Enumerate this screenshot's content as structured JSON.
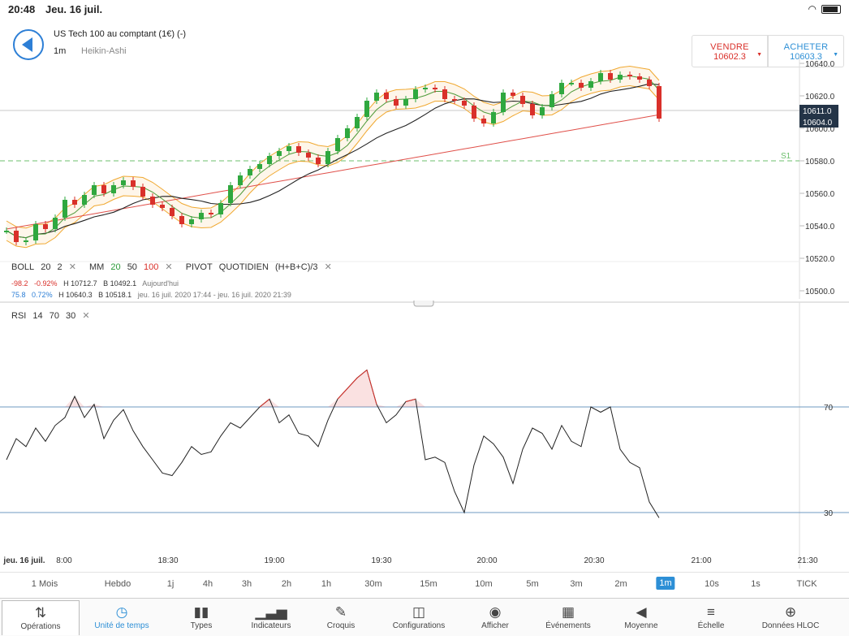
{
  "status": {
    "time": "20:48",
    "date": "Jeu. 16 juil."
  },
  "instrument": {
    "name": "US Tech 100 au comptant (1€) (-)",
    "timeframe": "1m",
    "chart_type": "Heikin-Ashi"
  },
  "trade": {
    "sell_label": "VENDRE",
    "sell_price": "10602.3",
    "buy_label": "ACHETER",
    "buy_price": "10603.3"
  },
  "price_axis": {
    "labels": [
      "10640.0",
      "10620.0",
      "10600.0",
      "10580.0",
      "10560.0",
      "10540.0",
      "10520.0",
      "10500.0"
    ],
    "tag_sell": "10611.0",
    "tag_buy": "10604.0",
    "pivot_label": "S1"
  },
  "indicators": {
    "boll_name": "BOLL",
    "boll_p1": "20",
    "boll_p2": "2",
    "mm_name": "MM",
    "mm_p1": "20",
    "mm_p2": "50",
    "mm_p3": "100",
    "pivot_name": "PIVOT",
    "pivot_mode": "QUOTIDIEN",
    "pivot_formula": "(H+B+C)/3",
    "row1_change": "-98.2",
    "row1_pct": "-0.92%",
    "row1_high": "H 10712.7",
    "row1_low": "B 10492.1",
    "row1_period": "Aujourd'hui",
    "row2_change": "75.8",
    "row2_pct": "0.72%",
    "row2_high": "H 10640.3",
    "row2_low": "B 10518.1",
    "row2_period": "jeu. 16 juil. 2020 17:44 - jeu. 16 juil. 2020 21:39"
  },
  "rsi": {
    "name": "RSI",
    "p1": "14",
    "p2": "70",
    "p3": "30",
    "upper": "70",
    "lower": "30"
  },
  "time_axis": [
    "jeu. 16 juil.",
    "8:00",
    "18:30",
    "19:00",
    "19:30",
    "20:00",
    "20:30",
    "21:00",
    "21:30"
  ],
  "timeframes": [
    {
      "label": "1 Mois"
    },
    {
      "label": "Hebdo"
    },
    {
      "label": "1j"
    },
    {
      "label": "4h"
    },
    {
      "label": "3h"
    },
    {
      "label": "2h"
    },
    {
      "label": "1h"
    },
    {
      "label": "30m"
    },
    {
      "label": "15m"
    },
    {
      "label": "10m"
    },
    {
      "label": "5m"
    },
    {
      "label": "3m"
    },
    {
      "label": "2m"
    },
    {
      "label": "1m",
      "active": true
    },
    {
      "label": "10s"
    },
    {
      "label": "1s"
    },
    {
      "label": "TICK"
    }
  ],
  "toolbar": [
    {
      "label": "Opérations",
      "icon": "sort-arrows-icon"
    },
    {
      "label": "Unité de temps",
      "icon": "clock-icon",
      "active": true
    },
    {
      "label": "Types",
      "icon": "candles-icon"
    },
    {
      "label": "Indicateurs",
      "icon": "bar-chart-icon"
    },
    {
      "label": "Croquis",
      "icon": "pencil-icon"
    },
    {
      "label": "Configurations",
      "icon": "layout-icon"
    },
    {
      "label": "Afficher",
      "icon": "eye-icon"
    },
    {
      "label": "Événements",
      "icon": "calendar-icon"
    },
    {
      "label": "Moyenne",
      "icon": "megaphone-icon"
    },
    {
      "label": "Échelle",
      "icon": "scale-icon"
    },
    {
      "label": "Données HLOC",
      "icon": "crosshair-icon"
    }
  ],
  "colors": {
    "accent": "#2d8fd6",
    "up": "#2fa83f",
    "down": "#d9302a",
    "boll": "#f0a830",
    "mm20": "#4e9a3a",
    "mm50": "#222222",
    "mm100": "#e0504a",
    "pivot": "#6cbf6c"
  },
  "chart_data": {
    "type": "candlestick",
    "price_range": [
      10500,
      10645
    ],
    "rsi_range": [
      0,
      100
    ],
    "price_path": [
      10537,
      10530,
      10531,
      10541,
      10538,
      10545,
      10556,
      10553,
      10559,
      10565,
      10560,
      10565,
      10568,
      10564,
      10558,
      10553,
      10551,
      10546,
      10541,
      10544,
      10548,
      10547,
      10554,
      10565,
      10571,
      10575,
      10578,
      10583,
      10586,
      10589,
      10585,
      10582,
      10578,
      10586,
      10594,
      10600,
      10607,
      10617,
      10622,
      10618,
      10614,
      10618,
      10624,
      10625,
      10624,
      10618,
      10617,
      10614,
      10606,
      10603,
      10610,
      10622,
      10620,
      10615,
      10608,
      10613,
      10621,
      10628,
      10628,
      10625,
      10629,
      10634,
      10630,
      10633,
      10632,
      10630,
      10626,
      10606
    ],
    "rsi_path": [
      50,
      58,
      55,
      62,
      57,
      63,
      66,
      74,
      66,
      71,
      58,
      65,
      69,
      61,
      55,
      50,
      45,
      44,
      49,
      55,
      52,
      53,
      59,
      64,
      62,
      66,
      70,
      73,
      64,
      67,
      60,
      59,
      55,
      65,
      73,
      77,
      81,
      84,
      71,
      64,
      67,
      72,
      73,
      50,
      51,
      49,
      38,
      30,
      48,
      59,
      56,
      51,
      41,
      54,
      62,
      60,
      54,
      63,
      57,
      55,
      70,
      68,
      70,
      54,
      49,
      47,
      34,
      28
    ]
  }
}
